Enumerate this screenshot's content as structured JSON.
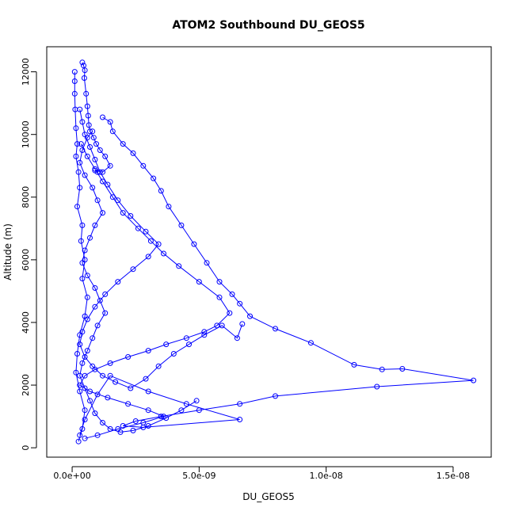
{
  "chart_data": {
    "type": "line",
    "title": "ATOM2 Southbound DU_GEOS5",
    "xlabel": "DU_GEOS5",
    "ylabel": "Altitude (m)",
    "xlim": [
      -1e-09,
      1.65e-08
    ],
    "ylim": [
      -300,
      12800
    ],
    "x_ticks": [
      0,
      5e-09,
      1e-08,
      1.5e-08
    ],
    "x_tick_labels": [
      "0.0e+00",
      "5.0e-09",
      "1.0e-08",
      "1.5e-08"
    ],
    "y_ticks": [
      0,
      2000,
      4000,
      6000,
      8000,
      10000,
      12000
    ],
    "y_tick_labels": [
      "0",
      "2000",
      "4000",
      "6000",
      "8000",
      "10000",
      "12000"
    ],
    "series_color": "#0000ff",
    "marker": "open-circle",
    "grid": false,
    "legend": "none",
    "series": [
      {
        "x": [
          4e-10,
          4.5e-10,
          5e-10,
          4.8e-10,
          5.5e-10,
          6e-10,
          6.3e-10,
          6.6e-10,
          7e-10,
          8.5e-10,
          9.5e-10,
          1.1e-09,
          1.3e-09,
          1.5e-09,
          1.2e-09,
          9e-10,
          1e-09
        ],
        "y": [
          12300,
          12200,
          12050,
          11800,
          11300,
          10900,
          10600,
          10300,
          10100,
          9900,
          9700,
          9500,
          9300,
          9000,
          8800,
          8850,
          8800
        ]
      },
      {
        "x": [
          1e-10,
          1e-10,
          1e-10,
          1.2e-10,
          1.5e-10,
          2e-10,
          1.5e-10,
          2.5e-10,
          3e-10,
          2e-10,
          4e-10,
          3.5e-10,
          5e-10,
          4e-10,
          6e-10,
          5e-10,
          3e-10,
          2e-10,
          1.5e-10,
          3e-10,
          5e-10,
          4e-10,
          2.5e-10
        ],
        "y": [
          12000,
          11700,
          11300,
          10800,
          10200,
          9700,
          9300,
          8800,
          8300,
          7700,
          7100,
          6600,
          6000,
          5400,
          4800,
          4200,
          3600,
          3000,
          2400,
          1800,
          1200,
          600,
          200
        ]
      },
      {
        "x": [
          1.2e-09,
          1.5e-09,
          1.6e-09,
          2e-09,
          2.4e-09,
          2.8e-09,
          3.2e-09,
          3.5e-09,
          3.8e-09,
          4.3e-09,
          4.8e-09,
          5.3e-09,
          5.8e-09,
          6.3e-09,
          6.6e-09,
          7e-09,
          8e-09,
          9.4e-09,
          1.11e-08,
          1.22e-08,
          1.3e-08,
          1.58e-08,
          1.2e-08,
          8e-09,
          6.6e-09,
          5e-09,
          3.5e-09,
          2.5e-09,
          2e-09,
          2.8e-09,
          6.6e-09,
          4.5e-09,
          3e-09,
          1.5e-09,
          1e-09,
          5e-10,
          3e-10
        ],
        "y": [
          10550,
          10400,
          10100,
          9700,
          9400,
          9000,
          8600,
          8200,
          7700,
          7100,
          6500,
          5900,
          5300,
          4900,
          4600,
          4200,
          3800,
          3350,
          2650,
          2500,
          2520,
          2150,
          1950,
          1650,
          1400,
          1200,
          1000,
          850,
          700,
          650,
          900,
          1400,
          1800,
          2300,
          1700,
          900,
          400
        ]
      },
      {
        "x": [
          3.5e-10,
          6e-10,
          9e-10,
          1.2e-09,
          1.6e-09,
          2e-09,
          2.6e-09,
          3.1e-09,
          3.6e-09,
          4.2e-09,
          5e-09,
          5.8e-09,
          6.2e-09,
          5.7e-09,
          5.2e-09,
          4.5e-09,
          3.7e-09,
          3e-09,
          2.2e-09,
          1.5e-09,
          9e-10,
          5e-10,
          3e-10,
          7e-10,
          1.4e-09,
          2.2e-09,
          3e-09,
          3.6e-09,
          2.8e-09,
          1.8e-09,
          1e-09,
          5e-10
        ],
        "y": [
          9700,
          9300,
          8900,
          8500,
          8000,
          7500,
          7000,
          6600,
          6200,
          5800,
          5300,
          4800,
          4300,
          3900,
          3700,
          3500,
          3300,
          3100,
          2900,
          2700,
          2500,
          2300,
          2000,
          1800,
          1600,
          1400,
          1200,
          1000,
          800,
          600,
          400,
          300
        ]
      },
      {
        "x": [
          3e-10,
          4e-10,
          5e-10,
          7e-10,
          9e-10,
          1.1e-09,
          1.4e-09,
          1.8e-09,
          2.3e-09,
          2.9e-09,
          3.4e-09,
          3e-09,
          2.4e-09,
          1.8e-09,
          1.3e-09,
          9e-10,
          6e-10,
          4e-10,
          3e-10,
          5e-10,
          8e-10,
          1.2e-09,
          1.7e-09,
          2.3e-09,
          2.9e-09,
          3.4e-09,
          4e-09,
          4.6e-09,
          5.2e-09,
          5.9e-09,
          6.5e-09,
          6.7e-09
        ],
        "y": [
          10800,
          10400,
          10000,
          9600,
          9200,
          8800,
          8400,
          7900,
          7400,
          6900,
          6500,
          6100,
          5700,
          5300,
          4900,
          4500,
          4100,
          3700,
          3300,
          2900,
          2600,
          2300,
          2100,
          1900,
          2200,
          2600,
          3000,
          3300,
          3600,
          3900,
          3500,
          3950
        ]
      },
      {
        "x": [
          8e-10,
          6e-10,
          4e-10,
          3e-10,
          5e-10,
          8e-10,
          1e-09,
          1.2e-09,
          9e-10,
          7e-10,
          5e-10,
          4e-10,
          6e-10,
          9e-10,
          1.1e-09,
          1.3e-09,
          1e-09,
          8e-10,
          6e-10,
          4e-10,
          3e-10,
          5e-10,
          7e-10,
          9e-10,
          1.2e-09,
          1.5e-09,
          1.9e-09,
          2.4e-09,
          3e-09,
          3.7e-09,
          4.3e-09,
          4.9e-09
        ],
        "y": [
          10100,
          9900,
          9500,
          9100,
          8700,
          8300,
          7900,
          7500,
          7100,
          6700,
          6300,
          5900,
          5500,
          5100,
          4700,
          4300,
          3900,
          3500,
          3100,
          2700,
          2300,
          1900,
          1500,
          1100,
          800,
          600,
          500,
          550,
          700,
          950,
          1200,
          1500
        ]
      }
    ]
  }
}
